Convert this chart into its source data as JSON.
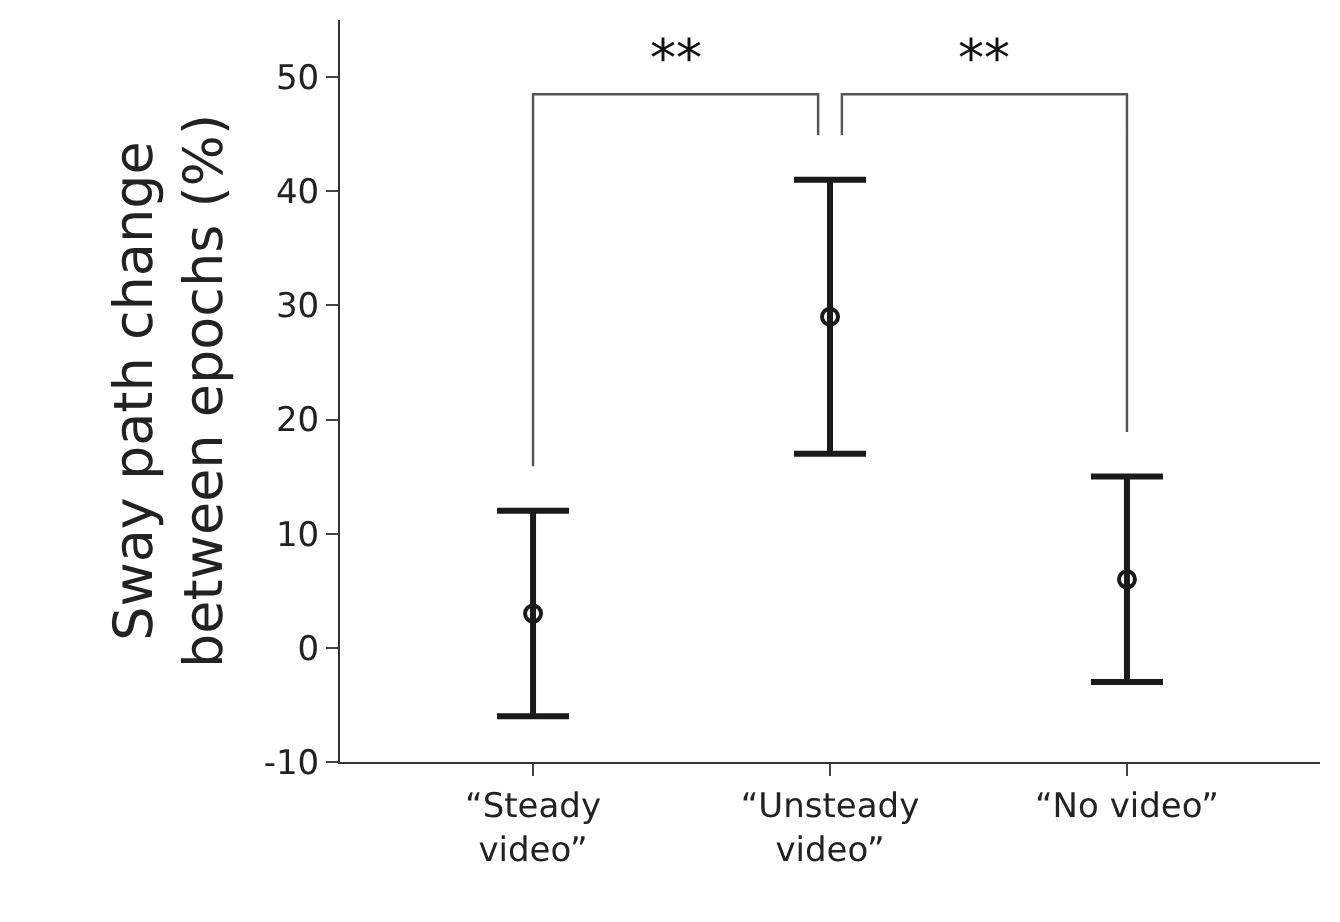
{
  "chart_data": {
    "type": "scatter",
    "ylabel": "Sway path change\nbetween epochs (%)",
    "categories": [
      "“Steady\nvideo”",
      "“Unsteady\nvideo”",
      "“No video”"
    ],
    "values": [
      3,
      29,
      6
    ],
    "errors": [
      [
        -6,
        12
      ],
      [
        17,
        41
      ],
      [
        -3,
        15
      ]
    ],
    "color": "#1a1a1a",
    "marker": "circle",
    "ylim": [
      -10,
      55
    ],
    "yticks": [
      -10,
      0,
      10,
      20,
      30,
      40,
      50
    ],
    "grid": false,
    "legend": false,
    "annotations": [
      "**",
      "**"
    ]
  }
}
